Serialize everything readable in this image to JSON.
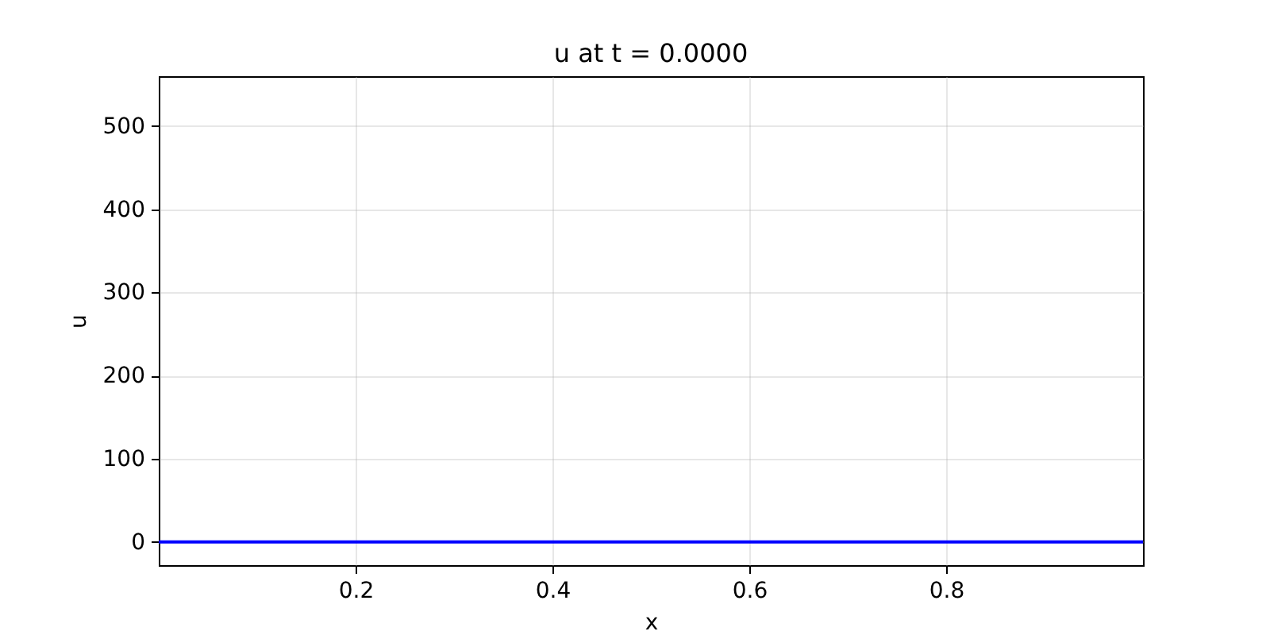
{
  "chart_data": {
    "type": "line",
    "title": "u at t = 0.0000",
    "xlabel": "x",
    "ylabel": "u",
    "x": [
      0,
      1
    ],
    "series": [
      {
        "color": "#0000ff",
        "values": [
          0,
          0
        ]
      }
    ],
    "xlim": [
      0,
      1
    ],
    "xticks": [
      0.2,
      0.4,
      0.6,
      0.8
    ],
    "ylim": [
      -28,
      560
    ],
    "yticks": [
      0,
      100,
      200,
      300,
      400,
      500
    ],
    "grid": true,
    "line_style": "solid"
  }
}
